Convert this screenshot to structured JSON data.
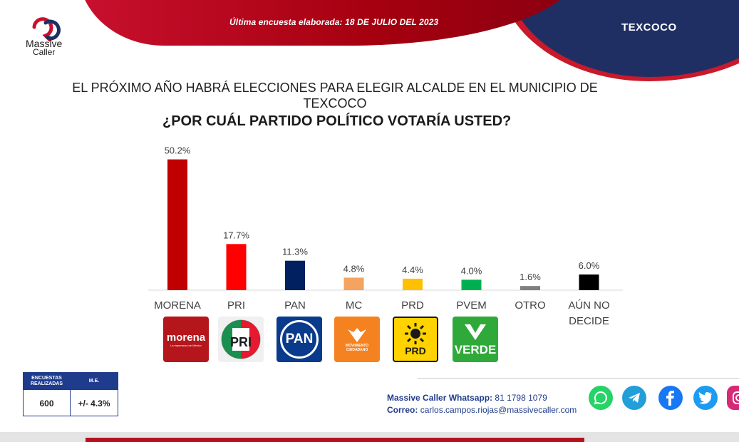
{
  "header": {
    "survey_date": "Última encuesta elaborada:  18  DE  JULIO DEL 2023",
    "region": "TEXCOCO"
  },
  "logo": {
    "line1": "Massive",
    "line2": "Caller"
  },
  "question": "EL PRÓXIMO AÑO HABRÁ ELECCIONES PARA ELEGIR ALCALDE EN EL MUNICIPIO DE TEXCOCO",
  "subtitle": "¿POR CUÁL PARTIDO POLÍTICO VOTARÍA USTED?",
  "chart_data": {
    "type": "bar",
    "title": "¿POR CUÁL PARTIDO POLÍTICO VOTARÍA USTED?",
    "xlabel": "",
    "ylabel": "",
    "ylim": [
      0,
      52
    ],
    "categories": [
      "MORENA",
      "PRI",
      "PAN",
      "MC",
      "PRD",
      "PVEM",
      "OTRO",
      "AÚN NO DECIDE"
    ],
    "category_lines": [
      [
        "MORENA"
      ],
      [
        "PRI"
      ],
      [
        "PAN"
      ],
      [
        "MC"
      ],
      [
        "PRD"
      ],
      [
        "PVEM"
      ],
      [
        "OTRO"
      ],
      [
        "AÚN NO",
        "DECIDE"
      ]
    ],
    "values": [
      50.2,
      17.7,
      11.3,
      4.8,
      4.4,
      4.0,
      1.6,
      6.0
    ],
    "labels": [
      "50.2%",
      "17.7%",
      "11.3%",
      "4.8%",
      "4.4%",
      "4.0%",
      "1.6%",
      "6.0%"
    ],
    "colors": [
      "#c00000",
      "#ff0000",
      "#002060",
      "#f4a460",
      "#ffc000",
      "#00b050",
      "#808080",
      "#000000"
    ],
    "grid": false
  },
  "party_logos": {
    "morena": {
      "text": "morena",
      "sub": "La esperanza de México"
    },
    "pri": {
      "text": "PRI"
    },
    "pan": {
      "text": "PAN"
    },
    "mc": {
      "text": "MOVIMIENTO CIUDADANO"
    },
    "prd": {
      "text": "PRD"
    },
    "verde": {
      "text": "VERDE"
    }
  },
  "stats": {
    "col1_header": "ENCUESTAS REALIZADAS",
    "col2_header": "M.E.",
    "col1_value": "600",
    "col2_value": "+/- 4.3%"
  },
  "contact": {
    "whatsapp_label": "Massive Caller Whatsapp:",
    "whatsapp_value": "81 1798 1079",
    "email_label": "Correo:",
    "email_value": "carlos.campos.riojas@massivecaller.com"
  },
  "colors": {
    "brand_red": "#c8102e",
    "brand_blue": "#1f2f63",
    "whatsapp": "#25d366",
    "telegram": "#229ed9",
    "facebook": "#1877f2",
    "twitter": "#1d9bf0",
    "instagram": "#d62976"
  }
}
